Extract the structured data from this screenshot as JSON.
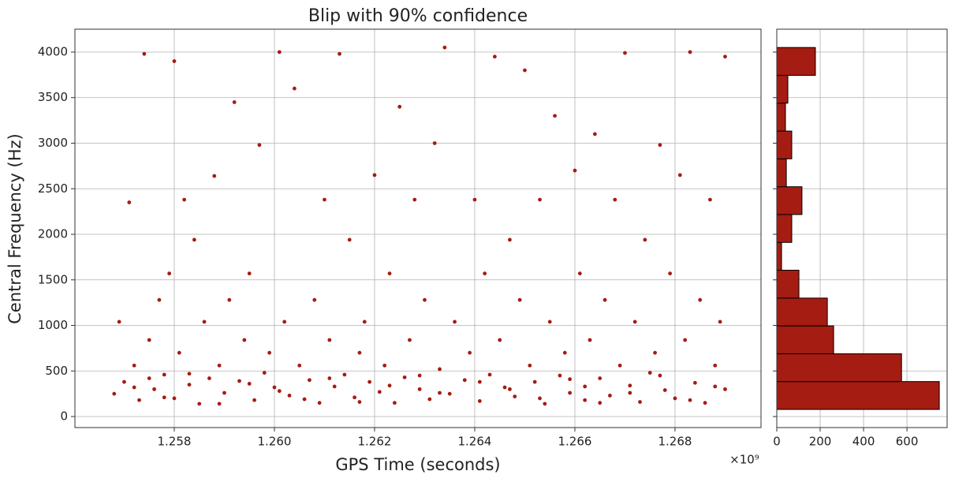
{
  "chart_data": [
    {
      "type": "scatter",
      "title": "Blip with 90% confidence",
      "xlabel": "GPS Time (seconds)",
      "ylabel": "Central Frequency (Hz)",
      "x_offset_label": "×10⁹",
      "color": "#a51c12",
      "grid": true,
      "xlim": [
        1.256016,
        1.269717
      ],
      "ylim": [
        -121,
        4251
      ],
      "xticks": [
        {
          "value": 1.258,
          "label": "1.258"
        },
        {
          "value": 1.26,
          "label": "1.260"
        },
        {
          "value": 1.262,
          "label": "1.262"
        },
        {
          "value": 1.264,
          "label": "1.264"
        },
        {
          "value": 1.266,
          "label": "1.266"
        },
        {
          "value": 1.268,
          "label": "1.268"
        }
      ],
      "yticks": [
        0,
        500,
        1000,
        1500,
        2000,
        2500,
        3000,
        3500,
        4000
      ],
      "x": [
        1.2568,
        1.2569,
        1.257,
        1.2571,
        1.2572,
        1.2573,
        1.2574,
        1.2575,
        1.2576,
        1.2577,
        1.2578,
        1.2579,
        1.258,
        1.258,
        1.2581,
        1.2582,
        1.2583,
        1.2584,
        1.2585,
        1.2586,
        1.2587,
        1.2588,
        1.2589,
        1.259,
        1.2591,
        1.2592,
        1.2593,
        1.2594,
        1.2595,
        1.2596,
        1.2597,
        1.2598,
        1.2599,
        1.26,
        1.2601,
        1.2602,
        1.2603,
        1.2604,
        1.2605,
        1.2607,
        1.2608,
        1.2609,
        1.261,
        1.2611,
        1.2612,
        1.2613,
        1.2614,
        1.2615,
        1.2616,
        1.2617,
        1.2618,
        1.2619,
        1.262,
        1.2621,
        1.2622,
        1.2623,
        1.2624,
        1.2625,
        1.2626,
        1.2627,
        1.2628,
        1.2629,
        1.263,
        1.2631,
        1.2632,
        1.2633,
        1.2634,
        1.2635,
        1.2636,
        1.2638,
        1.2639,
        1.264,
        1.2641,
        1.2642,
        1.2643,
        1.2644,
        1.2645,
        1.2646,
        1.2647,
        1.2648,
        1.2649,
        1.265,
        1.2651,
        1.2652,
        1.2653,
        1.2654,
        1.2655,
        1.2656,
        1.2657,
        1.2658,
        1.2659,
        1.266,
        1.2661,
        1.2662,
        1.2663,
        1.2664,
        1.2665,
        1.2666,
        1.2667,
        1.2668,
        1.2669,
        1.267,
        1.2671,
        1.2672,
        1.2673,
        1.2674,
        1.2675,
        1.2676,
        1.2677,
        1.2678,
        1.2679,
        1.268,
        1.2681,
        1.2682,
        1.2683,
        1.2684,
        1.2685,
        1.2686,
        1.2687,
        1.2688,
        1.2689,
        1.269,
        1.269,
        1.2572,
        1.2578,
        1.2583,
        1.2589,
        1.2595,
        1.2601,
        1.2611,
        1.2617,
        1.2623,
        1.2629,
        1.2641,
        1.2647,
        1.2653,
        1.2659,
        1.2665,
        1.2671,
        1.2677,
        1.2683,
        1.2688,
        1.2575,
        1.2606,
        1.2633,
        1.2662
      ],
      "values": [
        250,
        1040,
        380,
        2350,
        560,
        180,
        3980,
        840,
        300,
        1280,
        460,
        1570,
        3900,
        200,
        700,
        2380,
        350,
        1940,
        140,
        1040,
        420,
        2640,
        560,
        260,
        1280,
        3450,
        390,
        840,
        1570,
        180,
        2980,
        480,
        700,
        320,
        4000,
        1040,
        230,
        3600,
        560,
        400,
        1280,
        150,
        2380,
        840,
        330,
        3980,
        460,
        1940,
        210,
        700,
        1040,
        380,
        2650,
        270,
        560,
        1570,
        150,
        3400,
        430,
        840,
        2380,
        300,
        1280,
        190,
        3000,
        520,
        4050,
        250,
        1040,
        400,
        700,
        2380,
        170,
        1570,
        460,
        3950,
        840,
        320,
        1940,
        220,
        1280,
        3800,
        560,
        380,
        2380,
        140,
        1040,
        3300,
        450,
        700,
        260,
        2700,
        1570,
        180,
        840,
        3100,
        420,
        1280,
        230,
        2380,
        560,
        3990,
        340,
        1040,
        160,
        1940,
        480,
        700,
        2980,
        290,
        1570,
        200,
        2650,
        840,
        4000,
        370,
        1280,
        150,
        2380,
        560,
        1040,
        300,
        3950,
        320,
        210,
        470,
        140,
        360,
        280,
        420,
        160,
        340,
        450,
        380,
        300,
        200,
        410,
        150,
        260,
        450,
        180,
        330,
        420,
        190,
        260,
        330
      ]
    },
    {
      "type": "histogram",
      "orientation": "horizontal",
      "color": "#a51c12",
      "edgecolor": "#000000",
      "grid": true,
      "xlim": [
        0,
        785
      ],
      "xticks": [
        0,
        200,
        400,
        600
      ],
      "ylim": [
        -121,
        4251
      ],
      "yticks": [
        0,
        500,
        1000,
        1500,
        2000,
        2500,
        3000,
        3500,
        4000
      ],
      "bins": [
        78,
        384,
        689,
        995,
        1300,
        1606,
        1911,
        2217,
        2522,
        2828,
        3133,
        3439,
        3744,
        4050
      ],
      "values": [
        749,
        575,
        262,
        233,
        102,
        22,
        69,
        116,
        44,
        69,
        40,
        51,
        178
      ]
    }
  ]
}
